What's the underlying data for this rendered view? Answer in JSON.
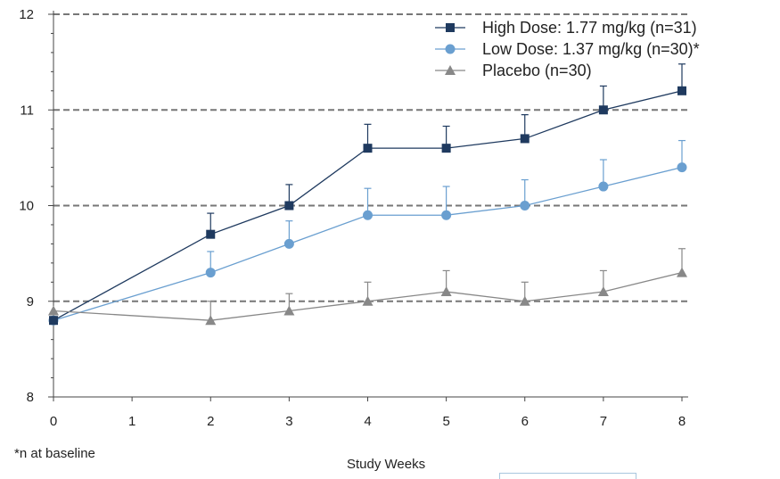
{
  "chart_data": {
    "type": "line",
    "title": "",
    "xlabel": "Study Weeks",
    "ylabel": "",
    "xlim": [
      0,
      8
    ],
    "ylim": [
      8,
      12
    ],
    "x_ticks": [
      0,
      1,
      2,
      3,
      4,
      5,
      6,
      7,
      8
    ],
    "y_ticks": [
      8,
      9,
      10,
      11,
      12
    ],
    "grid": "horizontal dashed at 9, 10, 11, 12",
    "legend_position": "top-right",
    "series": [
      {
        "name": "High Dose: 1.77 mg/kg (n=31)",
        "marker": "square",
        "color": "#1f3a5f",
        "x": [
          0,
          2,
          3,
          4,
          5,
          6,
          7,
          8
        ],
        "y": [
          8.8,
          9.7,
          10.0,
          10.6,
          10.6,
          10.7,
          11.0,
          11.2
        ],
        "error_upper": [
          0.0,
          0.22,
          0.22,
          0.25,
          0.23,
          0.25,
          0.25,
          0.28
        ]
      },
      {
        "name": "Low Dose: 1.37 mg/kg (n=30)*",
        "marker": "circle",
        "color": "#6a9fd0",
        "x": [
          0,
          2,
          3,
          4,
          5,
          6,
          7,
          8
        ],
        "y": [
          8.8,
          9.3,
          9.6,
          9.9,
          9.9,
          10.0,
          10.2,
          10.4
        ],
        "error_upper": [
          0.0,
          0.22,
          0.24,
          0.28,
          0.3,
          0.27,
          0.28,
          0.28
        ]
      },
      {
        "name": "Placebo (n=30)",
        "marker": "triangle",
        "color": "#888888",
        "x": [
          0,
          2,
          3,
          4,
          5,
          6,
          7,
          8
        ],
        "y": [
          8.9,
          8.8,
          8.9,
          9.0,
          9.1,
          9.0,
          9.1,
          9.3
        ],
        "error_upper": [
          0.0,
          0.2,
          0.18,
          0.2,
          0.22,
          0.2,
          0.22,
          0.25
        ]
      }
    ]
  },
  "footnote": "*n at baseline"
}
